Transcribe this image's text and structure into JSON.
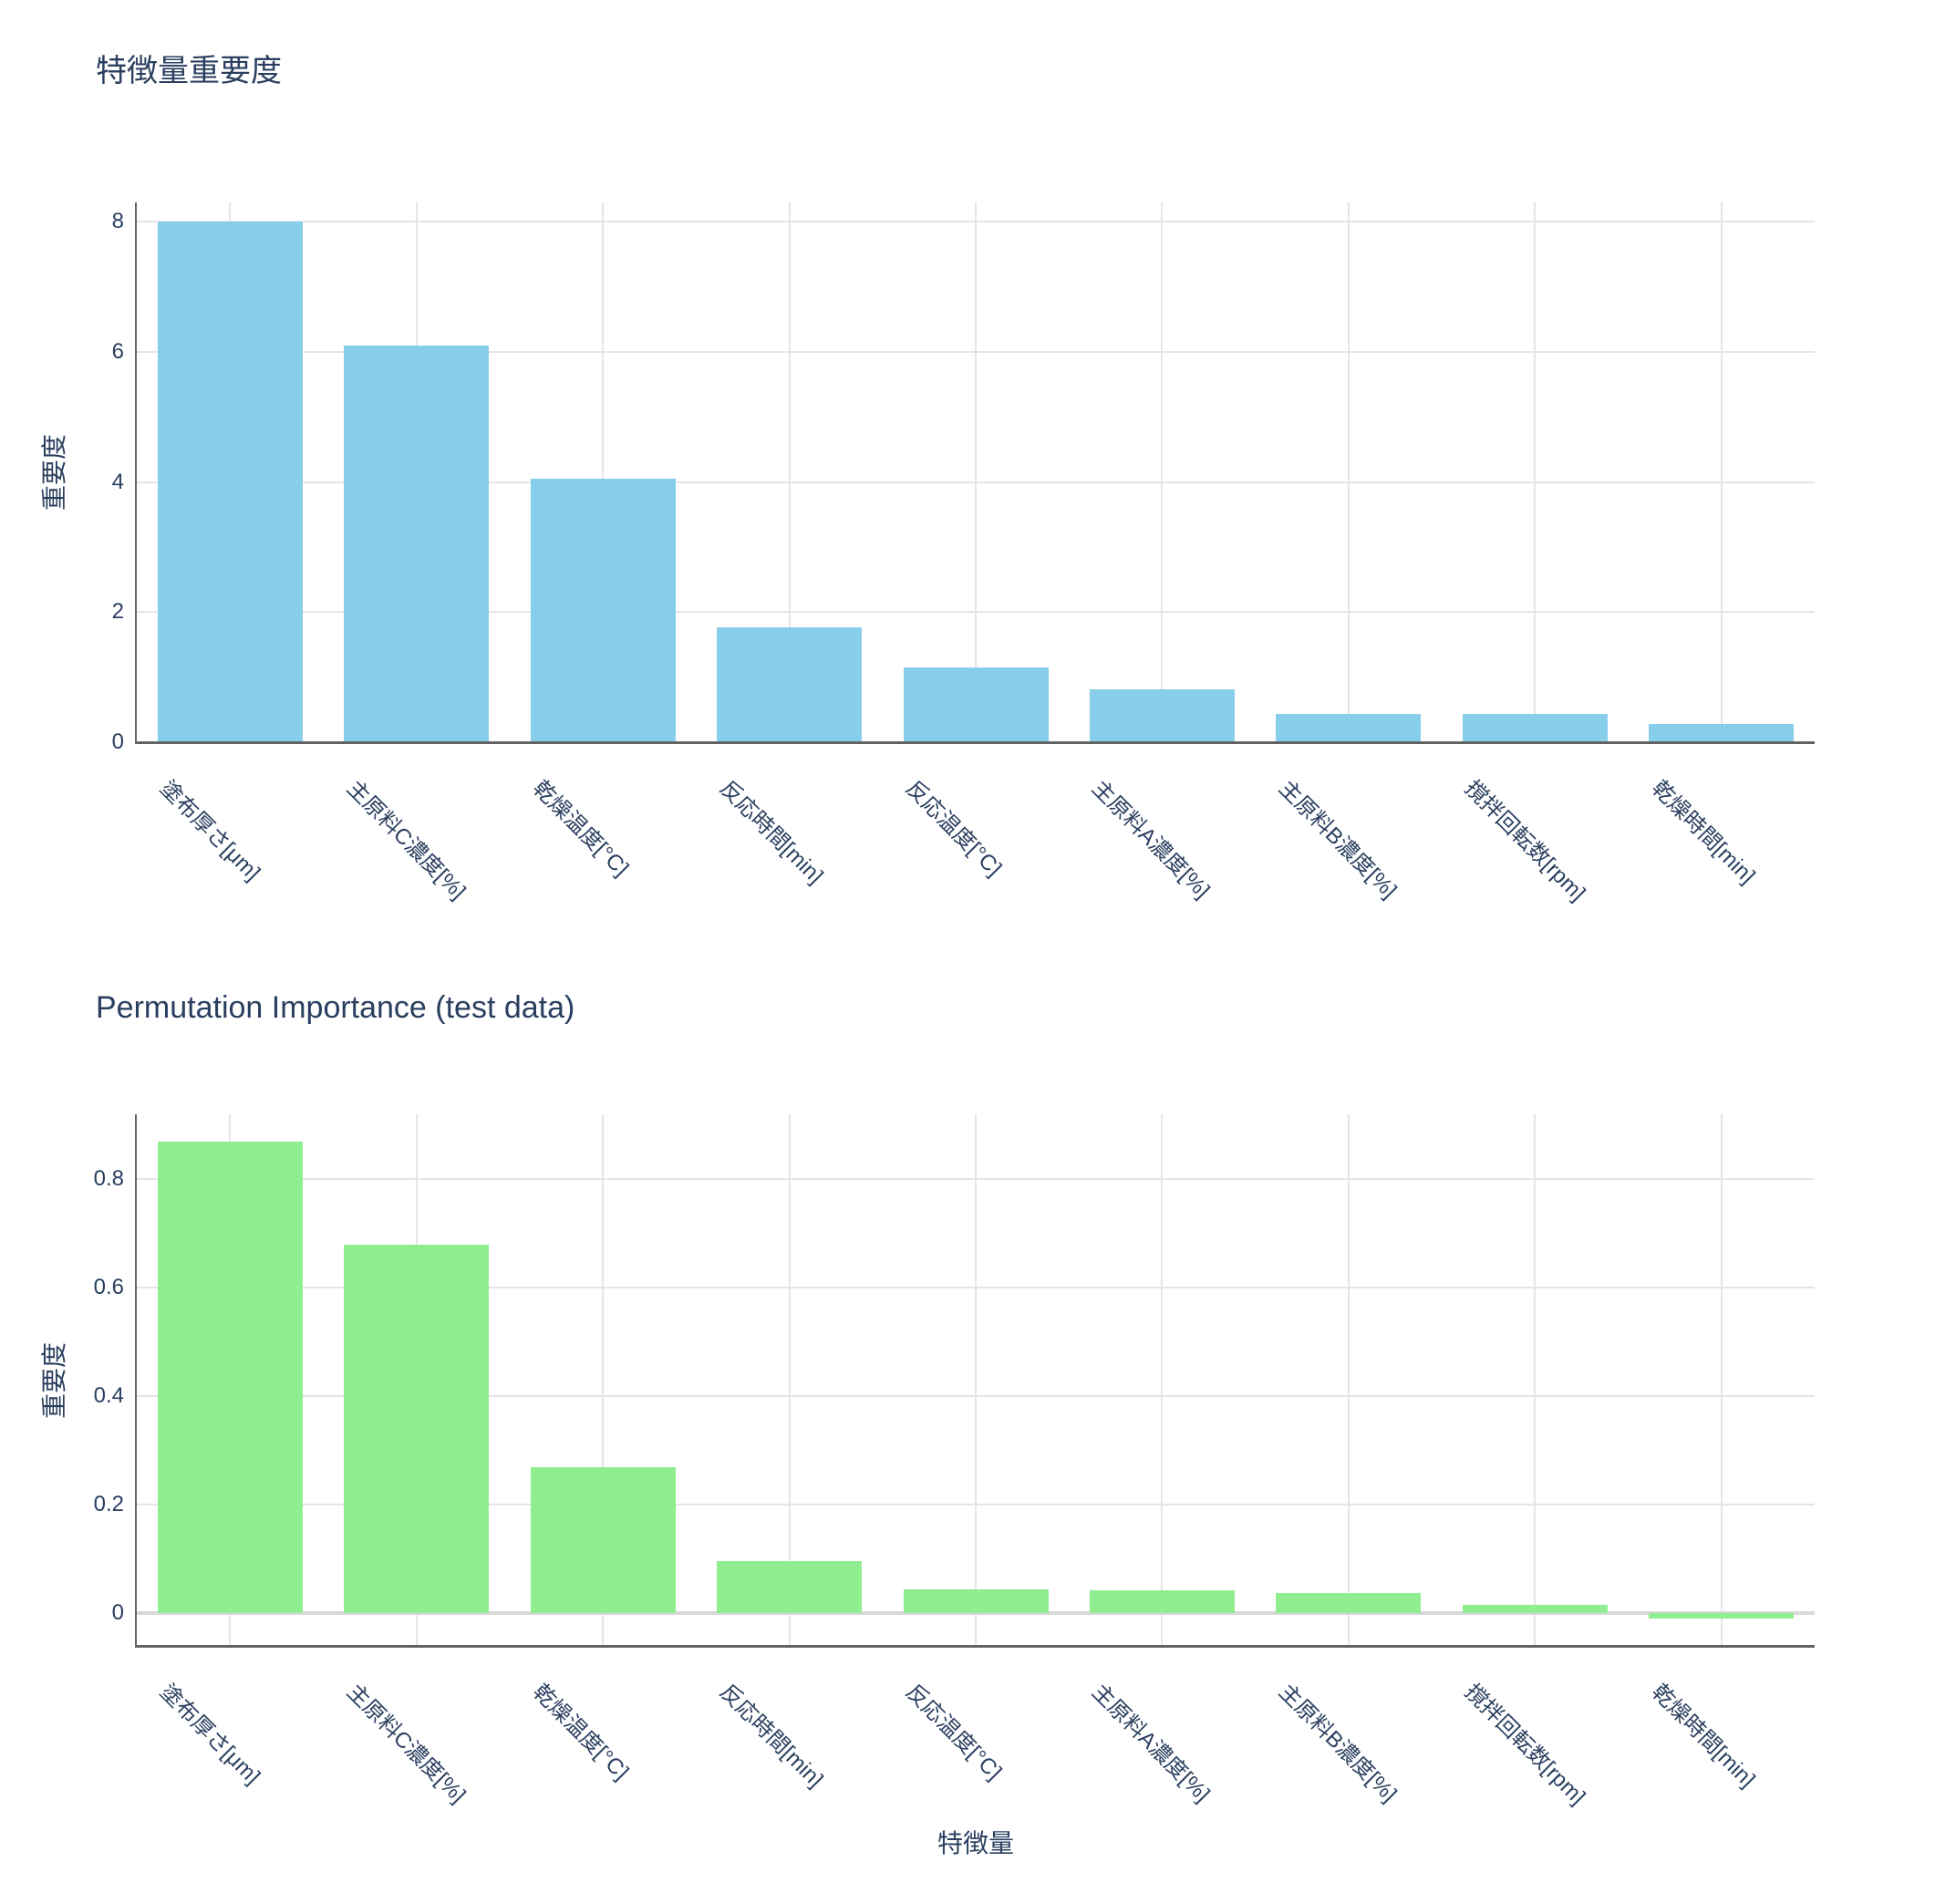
{
  "colors": {
    "background": "#ffffff",
    "text": "#2a3f5f",
    "grid": "#e5e5e5",
    "axis_line": "#636363",
    "zero_line": "#d8d8d8",
    "bar_blue": "#87CEEB",
    "bar_green": "#90EE90"
  },
  "chart_data": [
    {
      "type": "bar",
      "title": "特徴量重要度",
      "xlabel": "",
      "ylabel": "重要度",
      "legend": "none",
      "grid": true,
      "bar_color": "#87CEEB",
      "categories": [
        "塗布厚さ[μm]",
        "主原料C濃度[%]",
        "乾燥温度[°C]",
        "反応時間[min]",
        "反応温度[°C]",
        "主原料A濃度[%]",
        "主原料B濃度[%]",
        "撹拌回転数[rpm]",
        "乾燥時間[min]"
      ],
      "values": [
        8.0,
        6.1,
        4.05,
        1.76,
        1.15,
        0.82,
        0.44,
        0.43,
        0.28
      ],
      "yticks": [
        0,
        2,
        4,
        6,
        8
      ],
      "ytick_labels": [
        "0",
        "2",
        "4",
        "6",
        "8"
      ],
      "ylim": [
        0,
        8.3
      ]
    },
    {
      "type": "bar",
      "title": "Permutation Importance (test data)",
      "xlabel": "特徴量",
      "ylabel": "重要度",
      "legend": "none",
      "grid": true,
      "zeroline": true,
      "bar_color": "#90EE90",
      "categories": [
        "塗布厚さ[μm]",
        "主原料C濃度[%]",
        "乾燥温度[°C]",
        "反応時間[min]",
        "反応温度[°C]",
        "主原料A濃度[%]",
        "主原料B濃度[%]",
        "撹拌回転数[rpm]",
        "乾燥時間[min]"
      ],
      "values": [
        0.87,
        0.68,
        0.27,
        0.097,
        0.045,
        0.042,
        0.038,
        0.016,
        -0.01
      ],
      "yticks": [
        0,
        0.2,
        0.4,
        0.6,
        0.8
      ],
      "ytick_labels": [
        "0",
        "0.2",
        "0.4",
        "0.6",
        "0.8"
      ],
      "ylim": [
        -0.06,
        0.92
      ]
    }
  ]
}
